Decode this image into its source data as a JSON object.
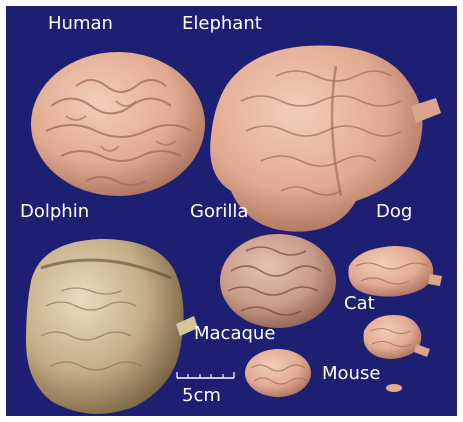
{
  "labels": {
    "human": "Human",
    "elephant": "Elephant",
    "dolphin": "Dolphin",
    "gorilla": "Gorilla",
    "dog": "Dog",
    "cat": "Cat",
    "macaque": "Macaque",
    "mouse": "Mouse"
  },
  "scale_bar": {
    "label": "5cm"
  },
  "colors": {
    "background": "#1d1f73",
    "brain_pink": "#e7b49b",
    "brain_shadow": "#b77b66",
    "dolphin_brain": "#c7b38a",
    "text": "#ffffff"
  }
}
